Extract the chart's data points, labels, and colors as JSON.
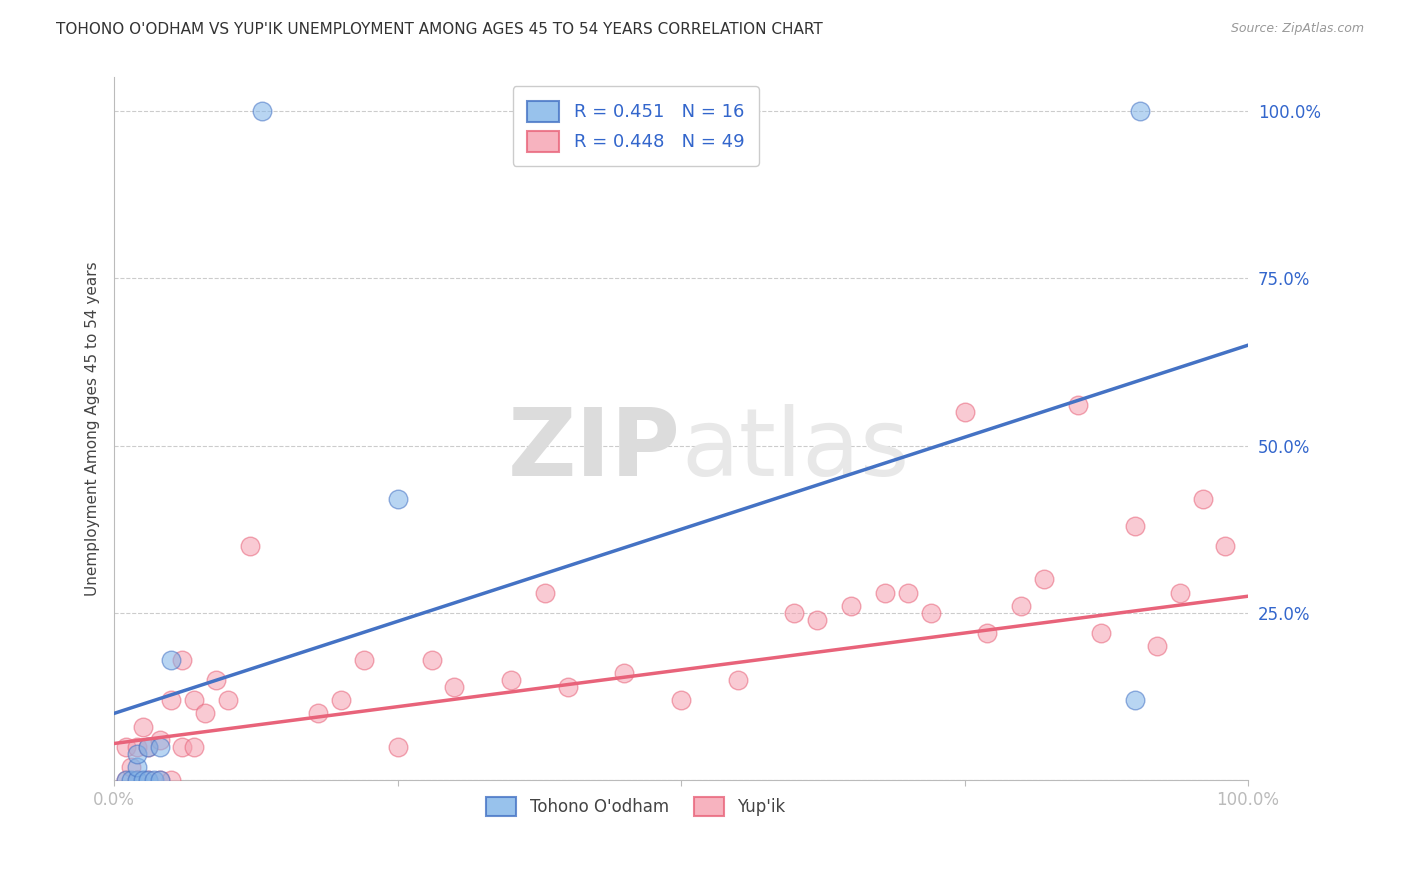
{
  "title": "TOHONO O'ODHAM VS YUP'IK UNEMPLOYMENT AMONG AGES 45 TO 54 YEARS CORRELATION CHART",
  "source": "Source: ZipAtlas.com",
  "ylabel": "Unemployment Among Ages 45 to 54 years",
  "x_min": 0.0,
  "x_max": 1.0,
  "y_min": 0.0,
  "y_max": 1.05,
  "legend_R1": "R = 0.451",
  "legend_N1": "N = 16",
  "legend_R2": "R = 0.448",
  "legend_N2": "N = 49",
  "label1": "Tohono O'odham",
  "label2": "Yup'ik",
  "color1": "#7FB3E8",
  "color2": "#F5A0B0",
  "line_color1": "#4472C4",
  "line_color2": "#E8637A",
  "background": "#FFFFFF",
  "watermark_zip": "ZIP",
  "watermark_atlas": "atlas",
  "tohono_x": [
    0.01,
    0.015,
    0.02,
    0.02,
    0.02,
    0.025,
    0.03,
    0.03,
    0.035,
    0.04,
    0.04,
    0.05,
    0.13,
    0.25,
    0.9,
    0.905
  ],
  "tohono_y": [
    0.0,
    0.0,
    0.0,
    0.02,
    0.04,
    0.0,
    0.0,
    0.05,
    0.0,
    0.0,
    0.05,
    0.18,
    1.0,
    0.42,
    0.12,
    1.0
  ],
  "yupik_x": [
    0.01,
    0.01,
    0.015,
    0.02,
    0.02,
    0.025,
    0.03,
    0.03,
    0.04,
    0.04,
    0.05,
    0.05,
    0.06,
    0.06,
    0.07,
    0.07,
    0.08,
    0.09,
    0.1,
    0.12,
    0.18,
    0.2,
    0.22,
    0.25,
    0.28,
    0.3,
    0.35,
    0.38,
    0.4,
    0.45,
    0.5,
    0.55,
    0.6,
    0.62,
    0.65,
    0.68,
    0.7,
    0.72,
    0.75,
    0.77,
    0.8,
    0.82,
    0.85,
    0.87,
    0.9,
    0.92,
    0.94,
    0.96,
    0.98
  ],
  "yupik_y": [
    0.0,
    0.05,
    0.02,
    0.0,
    0.05,
    0.08,
    0.0,
    0.05,
    0.0,
    0.06,
    0.0,
    0.12,
    0.05,
    0.18,
    0.05,
    0.12,
    0.1,
    0.15,
    0.12,
    0.35,
    0.1,
    0.12,
    0.18,
    0.05,
    0.18,
    0.14,
    0.15,
    0.28,
    0.14,
    0.16,
    0.12,
    0.15,
    0.25,
    0.24,
    0.26,
    0.28,
    0.28,
    0.25,
    0.55,
    0.22,
    0.26,
    0.3,
    0.56,
    0.22,
    0.38,
    0.2,
    0.28,
    0.42,
    0.35
  ],
  "line1_x0": 0.0,
  "line1_y0": 0.1,
  "line1_x1": 1.0,
  "line1_y1": 0.65,
  "line2_x0": 0.0,
  "line2_y0": 0.055,
  "line2_x1": 1.0,
  "line2_y1": 0.275
}
